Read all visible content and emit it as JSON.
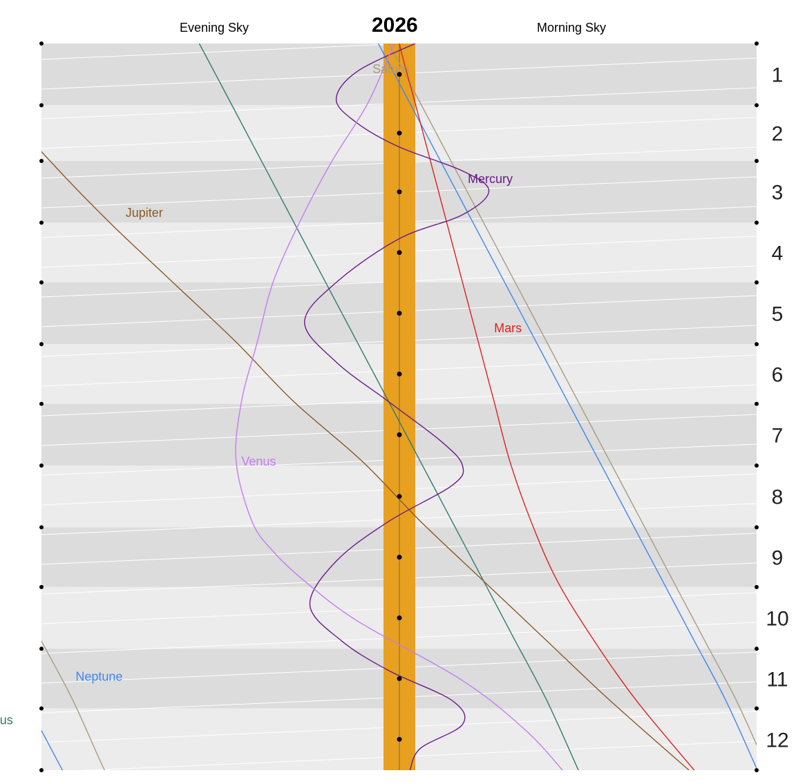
{
  "header": {
    "title": "2026",
    "left_label": "Evening Sky",
    "right_label": "Morning Sky"
  },
  "chart_data": {
    "type": "line",
    "title": "2026",
    "months": [
      "1",
      "2",
      "3",
      "4",
      "5",
      "6",
      "7",
      "8",
      "9",
      "10",
      "11",
      "12"
    ],
    "band_colors": {
      "dark": "#dcdcdc",
      "light": "#ececec",
      "sun": "#e8a020"
    },
    "series": [
      {
        "name": "Saturn",
        "color": "#a89a80",
        "points": [
          [
            -20,
            -6
          ],
          [
            0,
            -2
          ],
          [
            30,
            4
          ],
          [
            60,
            10
          ],
          [
            90,
            16
          ],
          [
            120,
            22
          ],
          [
            150,
            28
          ],
          [
            180,
            34
          ],
          [
            210,
            40
          ],
          [
            240,
            46
          ],
          [
            270,
            52
          ],
          [
            300,
            58
          ],
          [
            330,
            64
          ],
          [
            365,
            70
          ]
        ],
        "second_pass": [
          [
            240,
            -80
          ],
          [
            270,
            -74
          ],
          [
            300,
            -68
          ],
          [
            330,
            -62
          ],
          [
            365,
            -56
          ],
          [
            385,
            -52
          ]
        ],
        "label_at": [
          15,
          -5.1
        ],
        "open_markers": [],
        "filled_markers": []
      },
      {
        "name": "Neptune",
        "color": "#3f86f0",
        "points": [
          [
            -20,
            -8
          ],
          [
            0,
            -4
          ],
          [
            30,
            2
          ],
          [
            60,
            8
          ],
          [
            90,
            14
          ],
          [
            120,
            20
          ],
          [
            150,
            26
          ],
          [
            180,
            32
          ],
          [
            210,
            38
          ],
          [
            240,
            44
          ],
          [
            270,
            50
          ],
          [
            300,
            56
          ],
          [
            330,
            62
          ],
          [
            365,
            68
          ]
        ],
        "second_pass": [
          [
            260,
            -85
          ],
          [
            290,
            -79
          ],
          [
            320,
            -73
          ],
          [
            350,
            -67
          ],
          [
            385,
            -60
          ]
        ],
        "label_at": [
          320,
          -61.5
        ],
        "open_markers": [],
        "filled_markers": []
      },
      {
        "name": "Uranus",
        "color": "#2f7a6a",
        "points": [
          [
            -20,
            -42
          ],
          [
            0,
            -38
          ],
          [
            30,
            -32
          ],
          [
            60,
            -26
          ],
          [
            90,
            -20
          ],
          [
            120,
            -14
          ],
          [
            150,
            -8
          ],
          [
            180,
            -2
          ],
          [
            210,
            4
          ],
          [
            240,
            10
          ],
          [
            270,
            16
          ],
          [
            300,
            22
          ],
          [
            330,
            28
          ],
          [
            365,
            34
          ]
        ],
        "second_pass": [
          [
            325,
            -88
          ],
          [
            350,
            -83
          ],
          [
            385,
            -76
          ]
        ],
        "label_at": [
          342,
          -81
        ],
        "open_markers": [],
        "filled_markers": []
      },
      {
        "name": "Jupiter",
        "color": "#8a5a22",
        "points": [
          [
            -20,
            -88
          ],
          [
            0,
            -84
          ],
          [
            30,
            -76
          ],
          [
            60,
            -66
          ],
          [
            90,
            -55
          ],
          [
            120,
            -43
          ],
          [
            150,
            -31
          ],
          [
            180,
            -20
          ],
          [
            210,
            -7
          ],
          [
            240,
            4
          ],
          [
            270,
            16
          ],
          [
            300,
            28
          ],
          [
            330,
            40
          ],
          [
            365,
            55
          ]
        ],
        "label_at": [
          87,
          -52
        ],
        "open_markers": [],
        "filled_markers": []
      },
      {
        "name": "Mars",
        "color": "#e02020",
        "points": [
          [
            -20,
            -1
          ],
          [
            0,
            0
          ],
          [
            30,
            3
          ],
          [
            60,
            6
          ],
          [
            90,
            9
          ],
          [
            120,
            12
          ],
          [
            150,
            15
          ],
          [
            180,
            18
          ],
          [
            210,
            21
          ],
          [
            240,
            25
          ],
          [
            270,
            30
          ],
          [
            300,
            37
          ],
          [
            330,
            45
          ],
          [
            365,
            56
          ]
        ],
        "label_at": [
          145,
          18
        ],
        "open_markers": [],
        "filled_markers": []
      },
      {
        "name": "Mercury",
        "color": "#6a1a8a",
        "points": [
          [
            0,
            3
          ],
          [
            14,
            -8
          ],
          [
            28,
            -12
          ],
          [
            40,
            -8
          ],
          [
            52,
            0
          ],
          [
            64,
            12
          ],
          [
            74,
            17
          ],
          [
            86,
            12
          ],
          [
            98,
            0
          ],
          [
            120,
            -12
          ],
          [
            140,
            -18
          ],
          [
            160,
            -12
          ],
          [
            180,
            -2
          ],
          [
            200,
            8
          ],
          [
            212,
            12
          ],
          [
            222,
            10
          ],
          [
            240,
            -2
          ],
          [
            260,
            -12
          ],
          [
            282,
            -17
          ],
          [
            300,
            -11
          ],
          [
            315,
            -2
          ],
          [
            330,
            10
          ],
          [
            342,
            12
          ],
          [
            354,
            4
          ],
          [
            365,
            2
          ]
        ],
        "label_at": [
          70,
          13
        ],
        "open_markers": [],
        "filled_markers": []
      },
      {
        "name": "Venus",
        "color": "#c47cf0",
        "points": [
          [
            0,
            -1
          ],
          [
            30,
            -6
          ],
          [
            60,
            -13
          ],
          [
            90,
            -19
          ],
          [
            120,
            -24
          ],
          [
            150,
            -27
          ],
          [
            180,
            -30
          ],
          [
            210,
            -31
          ],
          [
            240,
            -28
          ],
          [
            255,
            -24
          ],
          [
            270,
            -18
          ],
          [
            290,
            -8
          ],
          [
            320,
            12
          ],
          [
            345,
            24
          ],
          [
            365,
            31
          ]
        ],
        "label_at": [
          212,
          -30
        ],
        "open_markers": [],
        "filled_markers": []
      }
    ]
  }
}
